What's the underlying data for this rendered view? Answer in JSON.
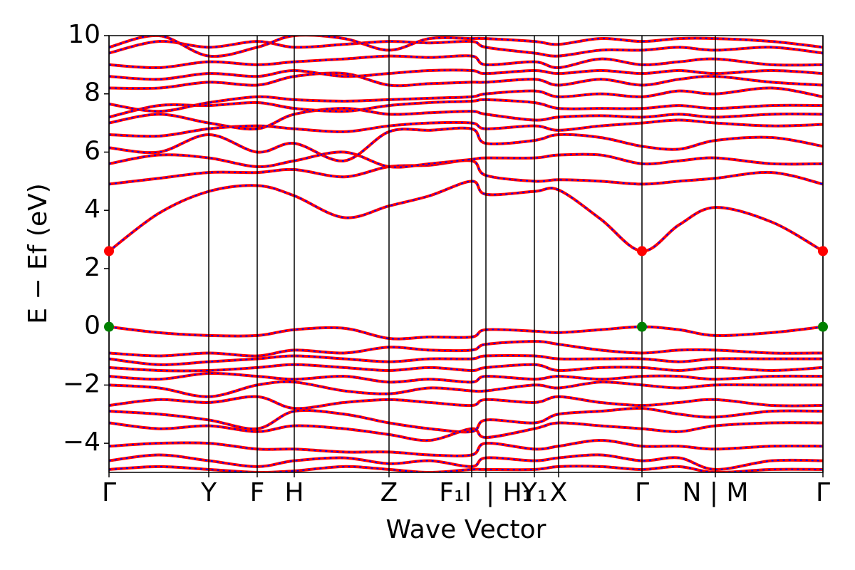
{
  "chart_data": {
    "type": "line",
    "x_label": "Wave Vector",
    "y_label": "E − Ef (eV)",
    "xlim": [
      0,
      1.002
    ],
    "ylim": [
      -5,
      10
    ],
    "xticks": [
      {
        "value": 0,
        "label": "Γ"
      },
      {
        "value": 0.14,
        "label": "Y"
      },
      {
        "value": 0.208,
        "label": "F"
      },
      {
        "value": 0.26,
        "label": "H"
      },
      {
        "value": 0.393,
        "label": "Z"
      },
      {
        "value": 0.509,
        "label": "F₁I"
      },
      {
        "value": 0.529,
        "label": "| H₁"
      },
      {
        "value": 0.597,
        "label": "Y₁"
      },
      {
        "value": 0.631,
        "label": "X"
      },
      {
        "value": 0.748,
        "label": "Γ"
      },
      {
        "value": 0.851,
        "label": "N | M"
      },
      {
        "value": 1.002,
        "label": "Γ"
      }
    ],
    "yticks": [
      {
        "value": -4,
        "label": "−4"
      },
      {
        "value": -2,
        "label": "−2"
      },
      0,
      2,
      4,
      6,
      8,
      10
    ],
    "color": "#ff0000",
    "dash_color": "#0000ff",
    "x": [
      0,
      0.07,
      0.14,
      0.208,
      0.26,
      0.33,
      0.393,
      0.45,
      0.509,
      0.529,
      0.597,
      0.631,
      0.69,
      0.748,
      0.8,
      0.851,
      0.93,
      1.002
    ],
    "series": [
      {
        "values": [
          2.6,
          3.9,
          4.65,
          4.85,
          4.5,
          3.75,
          4.15,
          4.5,
          5.0,
          4.55,
          4.65,
          4.7,
          3.7,
          2.6,
          3.5,
          4.1,
          3.6,
          2.6
        ]
      },
      {
        "values": [
          4.9,
          5.1,
          5.3,
          5.3,
          5.4,
          5.15,
          5.5,
          5.55,
          5.7,
          5.2,
          5.0,
          5.05,
          5.0,
          4.9,
          5.0,
          5.1,
          5.3,
          4.9
        ]
      },
      {
        "values": [
          5.6,
          5.9,
          5.8,
          5.5,
          5.7,
          6.0,
          5.5,
          5.6,
          5.75,
          5.8,
          5.8,
          5.9,
          5.9,
          5.6,
          5.7,
          5.8,
          5.6,
          5.6
        ]
      },
      {
        "values": [
          6.15,
          6.0,
          6.6,
          6.0,
          6.3,
          5.7,
          6.7,
          6.75,
          6.8,
          6.3,
          6.4,
          6.6,
          6.5,
          6.2,
          6.1,
          6.4,
          6.5,
          6.2
        ]
      },
      {
        "values": [
          6.6,
          6.55,
          6.8,
          6.9,
          6.8,
          6.7,
          6.9,
          7.0,
          7.0,
          6.8,
          6.9,
          6.75,
          6.9,
          7.0,
          7.1,
          7.0,
          6.9,
          6.95
        ]
      },
      {
        "values": [
          7.0,
          7.3,
          7.0,
          6.8,
          7.3,
          7.5,
          7.3,
          7.35,
          7.4,
          7.3,
          7.1,
          7.2,
          7.25,
          7.2,
          7.3,
          7.2,
          7.3,
          7.3
        ]
      },
      {
        "values": [
          7.2,
          7.6,
          7.6,
          7.7,
          7.5,
          7.4,
          7.6,
          7.7,
          7.75,
          7.8,
          7.7,
          7.5,
          7.5,
          7.5,
          7.6,
          7.5,
          7.6,
          7.6
        ]
      },
      {
        "values": [
          7.65,
          7.4,
          7.7,
          7.9,
          7.8,
          7.75,
          7.8,
          7.85,
          7.9,
          8.0,
          8.1,
          7.9,
          8.0,
          7.9,
          8.1,
          8.0,
          8.2,
          7.9
        ]
      },
      {
        "values": [
          8.2,
          8.2,
          8.4,
          8.3,
          8.6,
          8.7,
          8.3,
          8.35,
          8.4,
          8.4,
          8.5,
          8.3,
          8.5,
          8.3,
          8.5,
          8.6,
          8.4,
          8.3
        ]
      },
      {
        "values": [
          8.6,
          8.5,
          8.7,
          8.6,
          8.8,
          8.6,
          8.7,
          8.8,
          8.8,
          8.7,
          8.8,
          8.7,
          8.8,
          8.7,
          8.8,
          8.7,
          8.8,
          8.7
        ]
      },
      {
        "values": [
          9.0,
          8.9,
          9.1,
          9.0,
          9.1,
          9.2,
          9.3,
          9.25,
          9.3,
          9.0,
          9.1,
          8.9,
          9.2,
          9.0,
          9.1,
          9.2,
          9.0,
          9.0
        ]
      },
      {
        "values": [
          9.4,
          9.8,
          9.6,
          9.8,
          9.6,
          9.7,
          9.8,
          9.75,
          9.8,
          9.6,
          9.4,
          9.3,
          9.5,
          9.5,
          9.6,
          9.5,
          9.6,
          9.4
        ]
      },
      {
        "values": [
          9.6,
          10.0,
          9.3,
          9.6,
          10.0,
          9.9,
          9.5,
          9.9,
          9.9,
          9.9,
          9.8,
          9.7,
          9.9,
          9.8,
          9.9,
          9.9,
          9.8,
          9.6
        ]
      },
      {
        "values": [
          0,
          -0.2,
          -0.3,
          -0.3,
          -0.1,
          -0.05,
          -0.4,
          -0.35,
          -0.35,
          -0.1,
          -0.15,
          -0.2,
          -0.1,
          0,
          -0.1,
          -0.3,
          -0.2,
          0
        ]
      },
      {
        "values": [
          -0.9,
          -1.0,
          -0.9,
          -1.0,
          -0.8,
          -0.9,
          -0.7,
          -0.8,
          -0.8,
          -0.6,
          -0.5,
          -0.6,
          -0.8,
          -0.9,
          -0.8,
          -0.8,
          -0.9,
          -0.9
        ]
      },
      {
        "values": [
          -1.1,
          -1.3,
          -1.2,
          -1.1,
          -1.0,
          -1.1,
          -1.2,
          -1.1,
          -1.1,
          -1.0,
          -1.0,
          -1.1,
          -1.1,
          -1.1,
          -1.2,
          -1.1,
          -1.1,
          -1.1
        ]
      },
      {
        "values": [
          -1.4,
          -1.5,
          -1.5,
          -1.4,
          -1.3,
          -1.4,
          -1.5,
          -1.4,
          -1.5,
          -1.4,
          -1.3,
          -1.5,
          -1.4,
          -1.4,
          -1.5,
          -1.4,
          -1.5,
          -1.4
        ]
      },
      {
        "values": [
          -1.7,
          -1.8,
          -1.6,
          -1.7,
          -1.8,
          -1.7,
          -1.9,
          -1.8,
          -1.9,
          -1.7,
          -1.8,
          -1.7,
          -1.8,
          -1.7,
          -1.7,
          -1.8,
          -1.7,
          -1.7
        ]
      },
      {
        "values": [
          -2.0,
          -2.1,
          -2.4,
          -2.0,
          -1.9,
          -2.2,
          -2.3,
          -2.1,
          -2.2,
          -2.2,
          -2.0,
          -2.1,
          -1.9,
          -2.0,
          -2.1,
          -2.0,
          -2.0,
          -2.0
        ]
      },
      {
        "values": [
          -2.7,
          -2.5,
          -2.6,
          -2.4,
          -2.8,
          -2.6,
          -2.5,
          -2.6,
          -2.7,
          -2.5,
          -2.6,
          -2.4,
          -2.6,
          -2.7,
          -2.6,
          -2.5,
          -2.7,
          -2.7
        ]
      },
      {
        "values": [
          -2.9,
          -3.0,
          -3.2,
          -3.5,
          -2.9,
          -3.0,
          -3.3,
          -3.5,
          -3.6,
          -3.2,
          -3.3,
          -3.0,
          -2.9,
          -2.8,
          -3.0,
          -3.1,
          -2.9,
          -2.9
        ]
      },
      {
        "values": [
          -3.3,
          -3.5,
          -3.4,
          -3.6,
          -3.4,
          -3.5,
          -3.7,
          -3.9,
          -3.5,
          -3.8,
          -3.5,
          -3.3,
          -3.4,
          -3.5,
          -3.6,
          -3.4,
          -3.3,
          -3.3
        ]
      },
      {
        "values": [
          -4.1,
          -4.0,
          -4.0,
          -4.2,
          -4.2,
          -4.3,
          -4.3,
          -4.4,
          -4.4,
          -4.0,
          -4.2,
          -4.1,
          -3.9,
          -4.1,
          -4.1,
          -4.2,
          -4.1,
          -4.1
        ]
      },
      {
        "values": [
          -4.6,
          -4.4,
          -4.6,
          -4.8,
          -4.6,
          -4.5,
          -4.7,
          -4.6,
          -4.8,
          -4.5,
          -4.6,
          -4.5,
          -4.4,
          -4.6,
          -4.5,
          -4.9,
          -4.6,
          -4.6
        ]
      },
      {
        "values": [
          -4.9,
          -4.8,
          -4.9,
          -5.0,
          -4.95,
          -4.8,
          -4.9,
          -5.0,
          -4.9,
          -4.9,
          -4.9,
          -4.8,
          -4.8,
          -4.9,
          -4.8,
          -5.0,
          -4.9,
          -4.9
        ]
      }
    ],
    "markers": [
      {
        "x": [
          0,
          0.748,
          1.002
        ],
        "values": [
          2.6,
          2.6,
          2.6
        ],
        "color": "#ff0000"
      },
      {
        "x": [
          0,
          0.748,
          1.002
        ],
        "values": [
          0,
          0,
          0
        ],
        "color": "#008000"
      }
    ]
  }
}
